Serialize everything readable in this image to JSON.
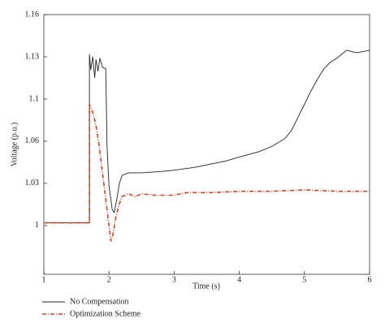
{
  "chart_data": {
    "type": "line",
    "x_label": "Time (s)",
    "y_label": "Voltage (p.u.)",
    "xlim": [
      1,
      6
    ],
    "xticks": [
      1,
      2,
      3,
      4,
      5,
      6
    ],
    "ylim": [
      0.963,
      1.16
    ],
    "yticks": [
      1,
      {
        "value": 1.032,
        "label": "1.03"
      },
      {
        "value": 1.064,
        "label": "1.06"
      },
      {
        "value": 1.096,
        "label": "1.1"
      },
      {
        "value": 1.128,
        "label": "1.13"
      },
      1.16
    ],
    "series": [
      {
        "name": "No Compensation",
        "color": "#222222",
        "x": [
          1,
          1.7,
          1.7,
          1.72,
          1.75,
          1.78,
          1.8,
          1.83,
          1.86,
          1.9,
          1.95,
          1.97,
          2.0,
          2.05,
          2.08,
          2.12,
          2.16,
          2.2,
          2.3,
          2.5,
          2.8,
          3.0,
          3.3,
          3.5,
          3.8,
          4.0,
          4.3,
          4.5,
          4.7,
          4.8,
          4.9,
          5.0,
          5.1,
          5.2,
          5.3,
          5.4,
          5.5,
          5.6,
          5.65,
          5.8,
          6.0
        ],
        "values": [
          1.002,
          1.002,
          1.13,
          1.118,
          1.128,
          1.112,
          1.126,
          1.117,
          1.127,
          1.12,
          1.119,
          1.06,
          1.03,
          1.012,
          1.01,
          1.02,
          1.032,
          1.038,
          1.04,
          1.04,
          1.041,
          1.042,
          1.044,
          1.046,
          1.049,
          1.052,
          1.056,
          1.06,
          1.066,
          1.072,
          1.082,
          1.092,
          1.102,
          1.111,
          1.119,
          1.124,
          1.127,
          1.131,
          1.133,
          1.131,
          1.133
        ]
      },
      {
        "name": "Optimization Scheme",
        "color": "#d2401e",
        "x": [
          1,
          1.7,
          1.7,
          1.75,
          1.8,
          1.85,
          1.9,
          1.95,
          2.0,
          2.03,
          2.06,
          2.1,
          2.15,
          2.2,
          2.3,
          2.4,
          2.5,
          2.7,
          3.0,
          3.2,
          3.4,
          3.6,
          4.0,
          4.5,
          5.0,
          5.5,
          6.0
        ],
        "values": [
          1.002,
          1.002,
          1.092,
          1.086,
          1.076,
          1.06,
          1.04,
          1.02,
          1.0,
          0.988,
          0.993,
          1.005,
          1.015,
          1.022,
          1.024,
          1.022,
          1.024,
          1.023,
          1.023,
          1.025,
          1.025,
          1.025,
          1.026,
          1.026,
          1.027,
          1.026,
          1.026
        ]
      }
    ]
  }
}
